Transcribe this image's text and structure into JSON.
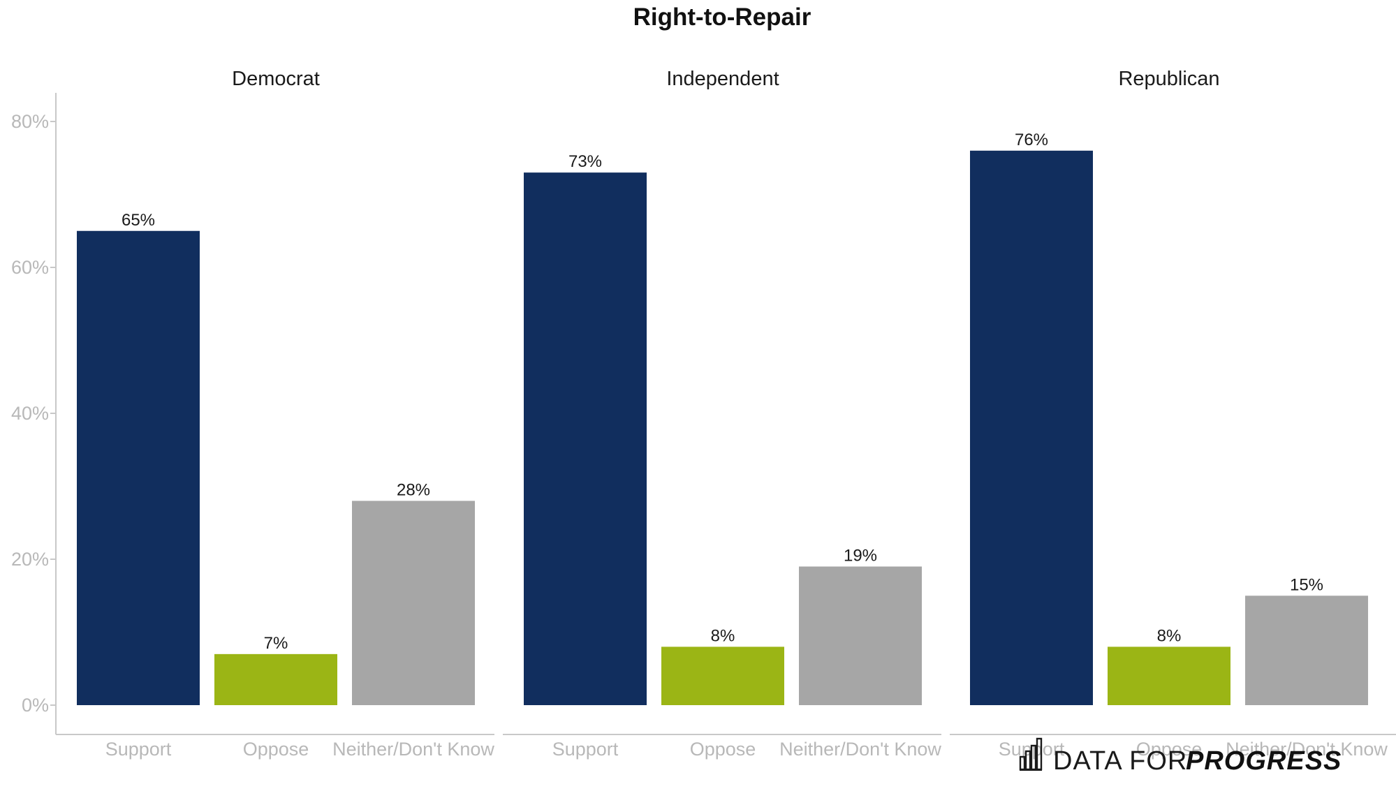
{
  "chart_data": {
    "type": "bar",
    "title": "Right-to-Repair",
    "categories": [
      "Support",
      "Oppose",
      "Neither/Don't Know"
    ],
    "colors": {
      "Support": "#112E5E",
      "Oppose": "#9BB515",
      "Neither/Don't Know": "#A6A6A6"
    },
    "ylim": [
      0,
      80
    ],
    "yticks": [
      0,
      20,
      40,
      60,
      80
    ],
    "ytick_labels": [
      "0%",
      "20%",
      "40%",
      "60%",
      "80%"
    ],
    "value_suffix": "%",
    "grid": false,
    "panels": [
      {
        "name": "Democrat",
        "values": [
          65,
          7,
          28
        ],
        "labels": [
          "65%",
          "7%",
          "28%"
        ]
      },
      {
        "name": "Independent",
        "values": [
          73,
          8,
          19
        ],
        "labels": [
          "73%",
          "8%",
          "19%"
        ]
      },
      {
        "name": "Republican",
        "values": [
          76,
          8,
          15
        ],
        "labels": [
          "76%",
          "8%",
          "15%"
        ]
      }
    ]
  },
  "branding": {
    "logo_light": "DATA FOR",
    "logo_bold": "PROGRESS",
    "logo_icon": "bar-chart-icon"
  }
}
